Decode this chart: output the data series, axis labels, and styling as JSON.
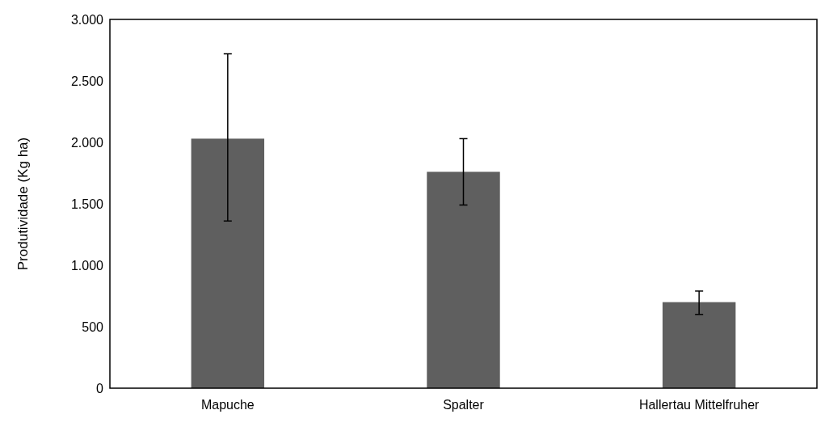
{
  "chart_data": {
    "type": "bar",
    "ylabel": "Produtividade (Kg ha)",
    "categories": [
      "Mapuche",
      "Spalter",
      "Hallertau Mittelfruher"
    ],
    "values": [
      2030,
      1760,
      700
    ],
    "errors": [
      [
        1360,
        2720
      ],
      [
        1490,
        2030
      ],
      [
        600,
        790
      ]
    ],
    "color": "#5f5f5f",
    "ylim": [
      0,
      3000
    ],
    "yticks": [
      {
        "value": 0,
        "label": "0"
      },
      {
        "value": 500,
        "label": "500"
      },
      {
        "value": 1000,
        "label": "1.000"
      },
      {
        "value": 1500,
        "label": "1.500"
      },
      {
        "value": 2000,
        "label": "2.000"
      },
      {
        "value": 2500,
        "label": "2.500"
      },
      {
        "value": 3000,
        "label": "3.000"
      }
    ],
    "grid": false
  }
}
